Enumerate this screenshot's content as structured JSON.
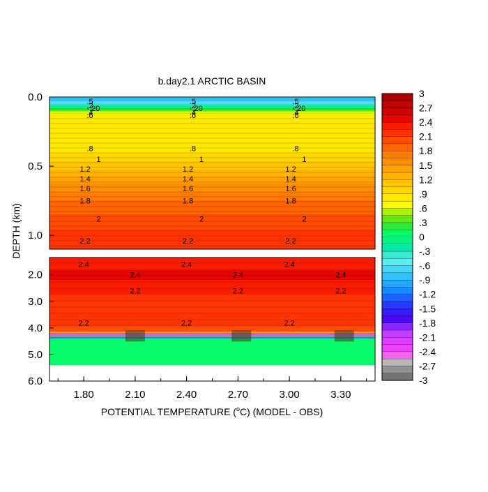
{
  "chart_data": {
    "type": "heatmap",
    "title": "b.day2.1 ARCTIC BASIN",
    "xlabel_pre": "POTENTIAL TEMPERATURE (",
    "xlabel_deg": "o",
    "xlabel_post": "C) (MODEL - OBS)",
    "ylabel": "DEPTH (km)",
    "x_ticks": [
      "1.80",
      "2.10",
      "2.40",
      "2.70",
      "3.00",
      "3.30"
    ],
    "xlim": [
      1.6,
      3.5
    ],
    "top_panel": {
      "ylim": [
        0.0,
        1.1
      ],
      "y_ticks": [
        "0.0",
        "0.5",
        "1.0"
      ],
      "y_tick_values": [
        0.0,
        0.5,
        1.0
      ],
      "profile": [
        {
          "depth": 0.0,
          "value": -0.6
        },
        {
          "depth": 0.02,
          "value": -0.9
        },
        {
          "depth": 0.05,
          "value": -0.5
        },
        {
          "depth": 0.07,
          "value": -0.1
        },
        {
          "depth": 0.09,
          "value": 0.3
        },
        {
          "depth": 0.11,
          "value": 0.6
        },
        {
          "depth": 0.13,
          "value": 0.75
        },
        {
          "depth": 0.35,
          "value": 0.8
        },
        {
          "depth": 0.45,
          "value": 1.0
        },
        {
          "depth": 0.52,
          "value": 1.2
        },
        {
          "depth": 0.59,
          "value": 1.4
        },
        {
          "depth": 0.66,
          "value": 1.6
        },
        {
          "depth": 0.75,
          "value": 1.8
        },
        {
          "depth": 0.88,
          "value": 2.0
        },
        {
          "depth": 1.04,
          "value": 2.2
        },
        {
          "depth": 1.1,
          "value": 2.25
        }
      ],
      "contour_labels": [
        {
          "depth": 0.03,
          "text": ".5"
        },
        {
          "depth": 0.06,
          "text": ".2"
        },
        {
          "depth": 0.08,
          "text": "-.20"
        },
        {
          "depth": 0.11,
          "text": ".4"
        },
        {
          "depth": 0.13,
          "text": ".6"
        },
        {
          "depth": 0.37,
          "text": ".8"
        },
        {
          "depth": 0.45,
          "text": "1"
        },
        {
          "depth": 0.52,
          "text": "1.2"
        },
        {
          "depth": 0.59,
          "text": "1.4"
        },
        {
          "depth": 0.66,
          "text": "1.6"
        },
        {
          "depth": 0.75,
          "text": "1.8"
        },
        {
          "depth": 0.88,
          "text": "2"
        },
        {
          "depth": 1.04,
          "text": "2.2"
        }
      ],
      "label_x": [
        1.85,
        2.45,
        3.05
      ]
    },
    "bottom_panel": {
      "ylim": [
        1.35,
        6.0
      ],
      "y_ticks": [
        "2.0",
        "3.0",
        "4.0",
        "5.0",
        "6.0"
      ],
      "y_tick_values": [
        2.0,
        3.0,
        4.0,
        5.0,
        6.0
      ],
      "profile": [
        {
          "depth": 1.35,
          "value": 2.3
        },
        {
          "depth": 1.8,
          "value": 2.4
        },
        {
          "depth": 2.2,
          "value": 2.4
        },
        {
          "depth": 2.5,
          "value": 2.3
        },
        {
          "depth": 2.9,
          "value": 2.2
        },
        {
          "depth": 3.4,
          "value": 2.15
        },
        {
          "depth": 3.9,
          "value": 2.1
        },
        {
          "depth": 4.15,
          "value": 2.0
        },
        {
          "depth": 4.22,
          "value": -2.8
        },
        {
          "depth": 4.33,
          "value": -2.8
        },
        {
          "depth": 4.4,
          "value": 0.1
        },
        {
          "depth": 5.35,
          "value": 0.1
        }
      ],
      "no_data_below": 5.35,
      "contour_labels": [
        {
          "depth": 1.6,
          "text": "2.4",
          "x": [
            1.8,
            2.4,
            3.0
          ]
        },
        {
          "depth": 2.0,
          "text": "2.4",
          "x": [
            2.1,
            2.7,
            3.3
          ]
        },
        {
          "depth": 2.6,
          "text": "2.2",
          "x": [
            2.1,
            2.7,
            3.3
          ]
        },
        {
          "depth": 3.8,
          "text": "2.2",
          "x": [
            1.8,
            2.4,
            3.0
          ]
        }
      ],
      "clusters": [
        {
          "x": 2.1,
          "depth": 4.3
        },
        {
          "x": 2.72,
          "depth": 4.3
        },
        {
          "x": 3.32,
          "depth": 4.3
        }
      ]
    },
    "colorbar": {
      "labels": [
        "3",
        "2.7",
        "2.4",
        "2.1",
        "1.8",
        "1.5",
        "1.2",
        ".9",
        ".6",
        ".3",
        "0",
        "-.3",
        "-.6",
        "-.9",
        "-1.2",
        "-1.5",
        "-1.8",
        "-2.1",
        "-2.4",
        "-2.7",
        "-3"
      ],
      "label_values": [
        3.0,
        2.7,
        2.4,
        2.1,
        1.8,
        1.5,
        1.2,
        0.9,
        0.6,
        0.3,
        0.0,
        -0.3,
        -0.6,
        -0.9,
        -1.2,
        -1.5,
        -1.8,
        -2.1,
        -2.4,
        -2.7,
        -3.0
      ],
      "min": -3.0,
      "max": 3.0,
      "levels": 40,
      "stops": [
        {
          "v": -3.0,
          "c": "#666666"
        },
        {
          "v": -2.7,
          "c": "#a0a0a0"
        },
        {
          "v": -2.55,
          "c": "#d0d0d0"
        },
        {
          "v": -2.45,
          "c": "#ff40ff"
        },
        {
          "v": -2.0,
          "c": "#c040ff"
        },
        {
          "v": -1.7,
          "c": "#4000ff"
        },
        {
          "v": -1.4,
          "c": "#2040ff"
        },
        {
          "v": -1.1,
          "c": "#1890ff"
        },
        {
          "v": -0.8,
          "c": "#30c8ff"
        },
        {
          "v": -0.5,
          "c": "#60f0f0"
        },
        {
          "v": -0.2,
          "c": "#00e8a0"
        },
        {
          "v": 0.05,
          "c": "#00ff70"
        },
        {
          "v": 0.3,
          "c": "#40e020"
        },
        {
          "v": 0.5,
          "c": "#a0f000"
        },
        {
          "v": 0.65,
          "c": "#ffff00"
        },
        {
          "v": 0.9,
          "c": "#ffe000"
        },
        {
          "v": 1.3,
          "c": "#ffb000"
        },
        {
          "v": 1.7,
          "c": "#ff8000"
        },
        {
          "v": 2.0,
          "c": "#ff5000"
        },
        {
          "v": 2.3,
          "c": "#ff2000"
        },
        {
          "v": 2.5,
          "c": "#e00000"
        },
        {
          "v": 2.8,
          "c": "#c00000"
        },
        {
          "v": 3.0,
          "c": "#a00000"
        }
      ]
    }
  }
}
